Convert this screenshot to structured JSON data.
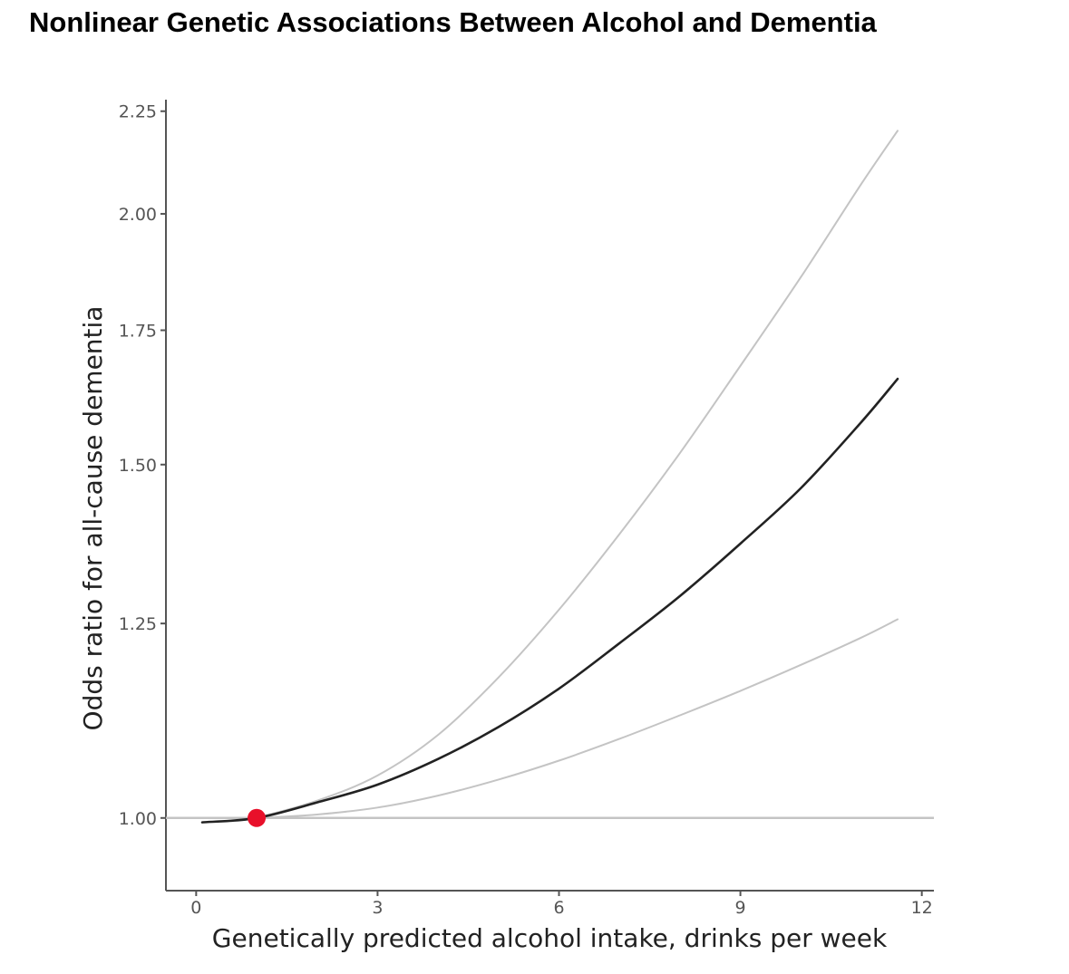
{
  "chart_data": {
    "type": "line",
    "title": "Nonlinear Genetic Associations Between Alcohol and Dementia",
    "xlabel": "Genetically predicted alcohol intake, drinks per week",
    "ylabel": "Odds ratio for all-cause dementia",
    "xlim": [
      -0.5,
      12.2
    ],
    "ylim": [
      0.92,
      2.28
    ],
    "x_ticks": [
      0,
      3,
      6,
      9,
      12
    ],
    "y_ticks": [
      1.0,
      1.25,
      1.5,
      1.75,
      2.0,
      2.25
    ],
    "y_scale": "log",
    "grid": false,
    "reference_line": {
      "y": 1.0
    },
    "reference_point": {
      "x": 1.0,
      "y": 1.0,
      "color": "#e8102a"
    },
    "series": [
      {
        "role": "estimate",
        "color": "#222222",
        "x": [
          0.1,
          1.0,
          2.0,
          3.0,
          4.0,
          5.0,
          6.0,
          7.0,
          8.0,
          9.0,
          10.0,
          11.0,
          11.6
        ],
        "values": [
          0.995,
          1.0,
          1.018,
          1.039,
          1.07,
          1.11,
          1.16,
          1.222,
          1.29,
          1.37,
          1.46,
          1.575,
          1.655
        ]
      },
      {
        "role": "upper-ci",
        "color": "#c4c4c4",
        "x": [
          1.0,
          2.0,
          3.0,
          4.0,
          5.0,
          6.0,
          7.0,
          8.0,
          9.0,
          10.0,
          11.0,
          11.6
        ],
        "values": [
          1.0,
          1.02,
          1.05,
          1.1,
          1.175,
          1.27,
          1.385,
          1.52,
          1.68,
          1.86,
          2.07,
          2.2
        ]
      },
      {
        "role": "lower-ci",
        "color": "#c4c4c4",
        "x": [
          1.0,
          2.0,
          3.0,
          4.0,
          5.0,
          6.0,
          7.0,
          8.0,
          9.0,
          10.0,
          11.0,
          11.6
        ],
        "values": [
          1.0,
          1.004,
          1.012,
          1.026,
          1.045,
          1.068,
          1.095,
          1.125,
          1.157,
          1.192,
          1.23,
          1.256
        ]
      }
    ]
  }
}
